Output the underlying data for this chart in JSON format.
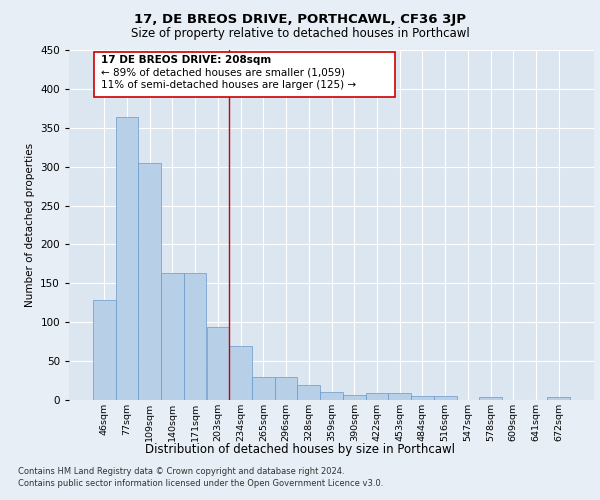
{
  "title": "17, DE BREOS DRIVE, PORTHCAWL, CF36 3JP",
  "subtitle": "Size of property relative to detached houses in Porthcawl",
  "xlabel": "Distribution of detached houses by size in Porthcawl",
  "ylabel": "Number of detached properties",
  "bar_labels": [
    "46sqm",
    "77sqm",
    "109sqm",
    "140sqm",
    "171sqm",
    "203sqm",
    "234sqm",
    "265sqm",
    "296sqm",
    "328sqm",
    "359sqm",
    "390sqm",
    "422sqm",
    "453sqm",
    "484sqm",
    "516sqm",
    "547sqm",
    "578sqm",
    "609sqm",
    "641sqm",
    "672sqm"
  ],
  "bar_values": [
    128,
    364,
    305,
    163,
    163,
    94,
    69,
    29,
    29,
    19,
    10,
    7,
    9,
    9,
    5,
    5,
    0,
    4,
    0,
    0,
    4
  ],
  "bar_color": "#b8cfe8",
  "bar_edge_color": "#6699cc",
  "property_label": "17 DE BREOS DRIVE: 208sqm",
  "stat1": "← 89% of detached houses are smaller (1,059)",
  "stat2": "11% of semi-detached houses are larger (125) →",
  "annotation_box_color": "#ffffff",
  "annotation_box_edge": "#cc0000",
  "vline_color": "#cc0000",
  "vline_x": 5.5,
  "ylim": [
    0,
    450
  ],
  "yticks": [
    0,
    50,
    100,
    150,
    200,
    250,
    300,
    350,
    400,
    450
  ],
  "background_color": "#dce6f0",
  "grid_color": "#ffffff",
  "fig_bg_color": "#e8eef5",
  "footer1": "Contains HM Land Registry data © Crown copyright and database right 2024.",
  "footer2": "Contains public sector information licensed under the Open Government Licence v3.0."
}
